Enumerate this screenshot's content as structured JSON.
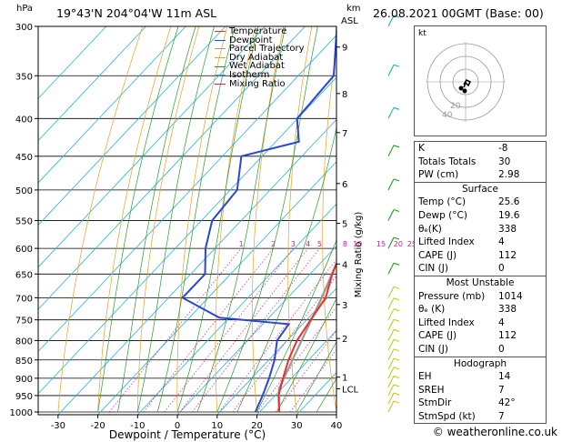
{
  "header": {
    "location": "19°43'N  204°04'W  11m ASL",
    "datetime": "26.08.2021  00GMT  (Base: 00)",
    "hpa_label": "hPa",
    "km_label": "km",
    "asl_label": "ASL"
  },
  "legend": [
    {
      "label": "Temperature",
      "color": "#e8312a"
    },
    {
      "label": "Dewpoint",
      "color": "#2a45d8"
    },
    {
      "label": "Parcel Trajectory",
      "color": "#999999"
    },
    {
      "label": "Dry Adiabat",
      "color": "#e8a020"
    },
    {
      "label": "Wet Adiabat",
      "color": "#2a9a2a"
    },
    {
      "label": "Isotherm",
      "color": "#2ab0e0"
    },
    {
      "label": "Mixing Ratio",
      "color": "#cc1f8a"
    }
  ],
  "chart_data": {
    "type": "skew-t log-p",
    "xlabel": "Dewpoint / Temperature (°C)",
    "y2label": "Mixing Ratio (g/kg)",
    "pressure_ticks": [
      300,
      350,
      400,
      450,
      500,
      550,
      600,
      650,
      700,
      750,
      800,
      850,
      900,
      950,
      1000
    ],
    "temp_ticks": [
      -30,
      -20,
      -10,
      0,
      10,
      20,
      30,
      40
    ],
    "xlim": [
      -35,
      40
    ],
    "height_ticks": [
      {
        "label": "9",
        "p": 320
      },
      {
        "label": "8",
        "p": 370
      },
      {
        "label": "7",
        "p": 418
      },
      {
        "label": "6",
        "p": 490
      },
      {
        "label": "5",
        "p": 555
      },
      {
        "label": "4",
        "p": 630
      },
      {
        "label": "3",
        "p": 715
      },
      {
        "label": "2",
        "p": 795
      },
      {
        "label": "1",
        "p": 897
      },
      {
        "label": "LCL",
        "p": 930
      }
    ],
    "mixing_ratio_labels": [
      "1",
      "2",
      "3",
      "4",
      "5",
      "8",
      "10",
      "15",
      "20",
      "25"
    ],
    "temperature": [
      {
        "p": 1000,
        "t": 25.6
      },
      {
        "p": 950,
        "t": 21.5
      },
      {
        "p": 900,
        "t": 18.5
      },
      {
        "p": 850,
        "t": 15.5
      },
      {
        "p": 800,
        "t": 13.0
      },
      {
        "p": 750,
        "t": 11.5
      },
      {
        "p": 700,
        "t": 10.0
      },
      {
        "p": 650,
        "t": 6.0
      },
      {
        "p": 600,
        "t": 2.5
      },
      {
        "p": 550,
        "t": -1.0
      },
      {
        "p": 500,
        "t": -5.5
      },
      {
        "p": 450,
        "t": -11.0
      },
      {
        "p": 400,
        "t": -17.0
      },
      {
        "p": 350,
        "t": -25.0
      },
      {
        "p": 300,
        "t": -35.0
      }
    ],
    "dewpoint": [
      {
        "p": 1000,
        "t": 19.6
      },
      {
        "p": 950,
        "t": 17.5
      },
      {
        "p": 900,
        "t": 15.0
      },
      {
        "p": 850,
        "t": 12.0
      },
      {
        "p": 800,
        "t": 8.0
      },
      {
        "p": 760,
        "t": 7.0
      },
      {
        "p": 745,
        "t": -12.0
      },
      {
        "p": 700,
        "t": -26.0
      },
      {
        "p": 650,
        "t": -26.0
      },
      {
        "p": 600,
        "t": -32.0
      },
      {
        "p": 550,
        "t": -37.0
      },
      {
        "p": 500,
        "t": -38.0
      },
      {
        "p": 450,
        "t": -45.0
      },
      {
        "p": 430,
        "t": -34.0
      },
      {
        "p": 400,
        "t": -40.0
      },
      {
        "p": 350,
        "t": -41.0
      },
      {
        "p": 300,
        "t": -52.0
      }
    ],
    "parcel": [
      {
        "p": 1000,
        "t": 25.6
      },
      {
        "p": 930,
        "t": 20.0
      },
      {
        "p": 850,
        "t": 16.5
      },
      {
        "p": 700,
        "t": 9.0
      },
      {
        "p": 600,
        "t": 2.5
      },
      {
        "p": 500,
        "t": -5.5
      },
      {
        "p": 400,
        "t": -15.5
      },
      {
        "p": 300,
        "t": -30.0
      }
    ]
  },
  "hodograph": {
    "unit_label": "kt",
    "ring_labels": [
      "20",
      "40"
    ]
  },
  "indices": [
    {
      "label": "K",
      "value": "-8"
    },
    {
      "label": "Totals Totals",
      "value": "30"
    },
    {
      "label": "PW (cm)",
      "value": "2.98"
    }
  ],
  "surface": {
    "title": "Surface",
    "rows": [
      {
        "label": "Temp (°C)",
        "value": "25.6"
      },
      {
        "label": "Dewp (°C)",
        "value": "19.6"
      },
      {
        "label": "θₑ(K)",
        "value": "338"
      },
      {
        "label": "Lifted Index",
        "value": "4"
      },
      {
        "label": "CAPE (J)",
        "value": "112"
      },
      {
        "label": "CIN (J)",
        "value": "0"
      }
    ]
  },
  "most_unstable": {
    "title": "Most Unstable",
    "rows": [
      {
        "label": "Pressure (mb)",
        "value": "1014"
      },
      {
        "label": "θₑ (K)",
        "value": "338"
      },
      {
        "label": "Lifted Index",
        "value": "4"
      },
      {
        "label": "CAPE (J)",
        "value": "112"
      },
      {
        "label": "CIN (J)",
        "value": "0"
      }
    ]
  },
  "hodograph_table": {
    "title": "Hodograph",
    "rows": [
      {
        "label": "EH",
        "value": "14"
      },
      {
        "label": "SREH",
        "value": "7"
      },
      {
        "label": "StmDir",
        "value": "42°"
      },
      {
        "label": "StmSpd (kt)",
        "value": "7"
      }
    ]
  },
  "copyright": "© weatheronline.co.uk"
}
